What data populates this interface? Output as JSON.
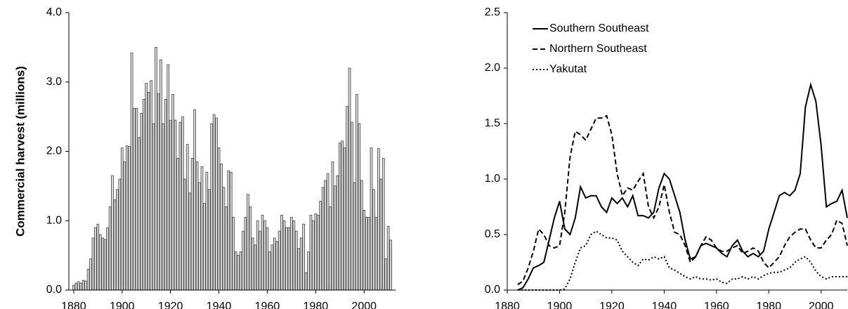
{
  "chart_data": [
    {
      "type": "bar",
      "ylabel": "Commercial harvest (millions)",
      "color": "#d9d9d9",
      "edge_color": "#444444",
      "x": [
        1880,
        1881,
        1882,
        1883,
        1884,
        1885,
        1886,
        1887,
        1888,
        1889,
        1890,
        1891,
        1892,
        1893,
        1894,
        1895,
        1896,
        1897,
        1898,
        1899,
        1900,
        1901,
        1902,
        1903,
        1904,
        1905,
        1906,
        1907,
        1908,
        1909,
        1910,
        1911,
        1912,
        1913,
        1914,
        1915,
        1916,
        1917,
        1918,
        1919,
        1920,
        1921,
        1922,
        1923,
        1924,
        1925,
        1926,
        1927,
        1928,
        1929,
        1930,
        1931,
        1932,
        1933,
        1934,
        1935,
        1936,
        1937,
        1938,
        1939,
        1940,
        1941,
        1942,
        1943,
        1944,
        1945,
        1946,
        1947,
        1948,
        1949,
        1950,
        1951,
        1952,
        1953,
        1954,
        1955,
        1956,
        1957,
        1958,
        1959,
        1960,
        1961,
        1962,
        1963,
        1964,
        1965,
        1966,
        1967,
        1968,
        1969,
        1970,
        1971,
        1972,
        1973,
        1974,
        1975,
        1976,
        1977,
        1978,
        1979,
        1980,
        1981,
        1982,
        1983,
        1984,
        1985,
        1986,
        1987,
        1988,
        1989,
        1990,
        1991,
        1992,
        1993,
        1994,
        1995,
        1996,
        1997,
        1998,
        1999,
        2000,
        2001,
        2002,
        2003,
        2004,
        2005,
        2006,
        2007,
        2008,
        2009,
        2010,
        2011
      ],
      "values": [
        0.07,
        0.1,
        0.12,
        0.1,
        0.14,
        0.13,
        0.3,
        0.45,
        0.75,
        0.9,
        0.95,
        0.8,
        0.75,
        0.73,
        0.9,
        1.2,
        1.65,
        1.3,
        1.45,
        1.6,
        2.05,
        1.85,
        2.08,
        2.07,
        3.42,
        2.62,
        2.62,
        2.2,
        2.55,
        2.75,
        2.98,
        2.85,
        3.02,
        2.4,
        3.5,
        2.83,
        3.32,
        2.4,
        2.75,
        3.25,
        2.45,
        2.82,
        2.45,
        1.9,
        2.42,
        2.5,
        1.6,
        2.1,
        1.4,
        1.9,
        2.6,
        1.85,
        1.55,
        1.78,
        1.25,
        1.7,
        1.45,
        2.4,
        2.53,
        2.48,
        2.05,
        1.82,
        1.48,
        1.2,
        1.72,
        1.7,
        1.05,
        0.55,
        0.5,
        0.55,
        0.85,
        1.05,
        1.38,
        1.2,
        0.75,
        0.65,
        1.0,
        0.85,
        1.08,
        1.0,
        0.9,
        0.55,
        0.65,
        0.75,
        0.7,
        0.85,
        1.08,
        1.0,
        0.9,
        0.9,
        1.05,
        1.0,
        0.85,
        0.6,
        0.75,
        0.95,
        0.25,
        0.55,
        1.08,
        1.0,
        1.1,
        1.08,
        1.28,
        1.48,
        1.58,
        1.68,
        1.2,
        1.85,
        1.5,
        1.65,
        2.12,
        2.15,
        2.05,
        2.65,
        3.2,
        2.42,
        1.55,
        2.82,
        2.4,
        1.58,
        1.15,
        1.05,
        1.05,
        2.05,
        1.45,
        1.05,
        2.04,
        1.6,
        1.9,
        0.45,
        0.92,
        0.72
      ],
      "xlim": [
        1878,
        2013
      ],
      "xticks": [
        1880,
        1900,
        1920,
        1940,
        1960,
        1980,
        2000
      ],
      "ylim": [
        0,
        4
      ],
      "yticks": [
        {
          "value": 0,
          "label": "0.0"
        },
        {
          "value": 1,
          "label": "1.0"
        },
        {
          "value": 2,
          "label": "2.0"
        },
        {
          "value": 3,
          "label": "3.0"
        },
        {
          "value": 4,
          "label": "4.0"
        }
      ]
    },
    {
      "type": "line",
      "legend": "upper left",
      "x": [
        1884,
        1886,
        1888,
        1890,
        1892,
        1894,
        1896,
        1898,
        1900,
        1902,
        1904,
        1906,
        1908,
        1910,
        1912,
        1914,
        1916,
        1918,
        1920,
        1922,
        1924,
        1926,
        1928,
        1930,
        1932,
        1934,
        1936,
        1938,
        1940,
        1942,
        1944,
        1946,
        1948,
        1950,
        1952,
        1954,
        1956,
        1958,
        1960,
        1962,
        1964,
        1966,
        1968,
        1970,
        1972,
        1974,
        1976,
        1978,
        1980,
        1982,
        1984,
        1986,
        1988,
        1990,
        1992,
        1994,
        1996,
        1998,
        2000,
        2002,
        2004,
        2006,
        2008,
        2010
      ],
      "series": [
        {
          "name": "Southern Southeast",
          "color": "#000000",
          "dash": "solid",
          "values": [
            0,
            0.02,
            0.1,
            0.2,
            0.22,
            0.25,
            0.45,
            0.65,
            0.8,
            0.55,
            0.5,
            0.65,
            0.93,
            0.83,
            0.85,
            0.85,
            0.75,
            0.7,
            0.83,
            0.78,
            0.83,
            0.75,
            0.85,
            0.67,
            0.67,
            0.65,
            0.7,
            0.92,
            1.05,
            1.0,
            0.85,
            0.7,
            0.45,
            0.28,
            0.3,
            0.4,
            0.42,
            0.4,
            0.38,
            0.33,
            0.3,
            0.4,
            0.45,
            0.35,
            0.3,
            0.33,
            0.3,
            0.35,
            0.55,
            0.7,
            0.85,
            0.88,
            0.85,
            0.9,
            1.05,
            1.65,
            1.85,
            1.7,
            1.3,
            0.75,
            0.78,
            0.8,
            0.9,
            0.65
          ]
        },
        {
          "name": "Northern Southeast",
          "color": "#000000",
          "dash": "dashed",
          "values": [
            0.05,
            0.08,
            0.2,
            0.35,
            0.55,
            0.5,
            0.4,
            0.38,
            0.4,
            0.7,
            1.2,
            1.43,
            1.4,
            1.35,
            1.45,
            1.55,
            1.55,
            1.57,
            1.4,
            1.05,
            0.85,
            0.92,
            0.9,
            0.98,
            1.05,
            0.75,
            0.65,
            0.75,
            0.95,
            0.7,
            0.52,
            0.5,
            0.4,
            0.25,
            0.3,
            0.4,
            0.48,
            0.45,
            0.38,
            0.35,
            0.35,
            0.38,
            0.4,
            0.33,
            0.35,
            0.38,
            0.35,
            0.25,
            0.2,
            0.25,
            0.3,
            0.4,
            0.48,
            0.52,
            0.55,
            0.55,
            0.45,
            0.38,
            0.38,
            0.45,
            0.5,
            0.63,
            0.6,
            0.4
          ]
        },
        {
          "name": "Yakutat",
          "color": "#000000",
          "dash": "dotted",
          "values": [
            0,
            0,
            0,
            0,
            0,
            0,
            0,
            0,
            0,
            0.01,
            0.1,
            0.25,
            0.38,
            0.4,
            0.5,
            0.53,
            0.5,
            0.47,
            0.47,
            0.45,
            0.35,
            0.3,
            0.25,
            0.22,
            0.28,
            0.27,
            0.3,
            0.28,
            0.3,
            0.2,
            0.18,
            0.15,
            0.12,
            0.1,
            0.12,
            0.1,
            0.1,
            0.09,
            0.1,
            0.07,
            0.06,
            0.1,
            0.1,
            0.12,
            0.1,
            0.12,
            0.1,
            0.13,
            0.15,
            0.16,
            0.16,
            0.18,
            0.2,
            0.25,
            0.28,
            0.3,
            0.25,
            0.17,
            0.12,
            0.1,
            0.12,
            0.12,
            0.12,
            0.12
          ]
        }
      ],
      "xlim": [
        1880,
        2010
      ],
      "xticks": [
        1880,
        1900,
        1920,
        1940,
        1960,
        1980,
        2000
      ],
      "ylim": [
        0,
        2.5
      ],
      "yticks": [
        {
          "value": 0,
          "label": "0.0"
        },
        0.5,
        {
          "value": 1,
          "label": "1.0"
        },
        1.5,
        {
          "value": 2,
          "label": "2.0"
        },
        2.5
      ]
    }
  ]
}
